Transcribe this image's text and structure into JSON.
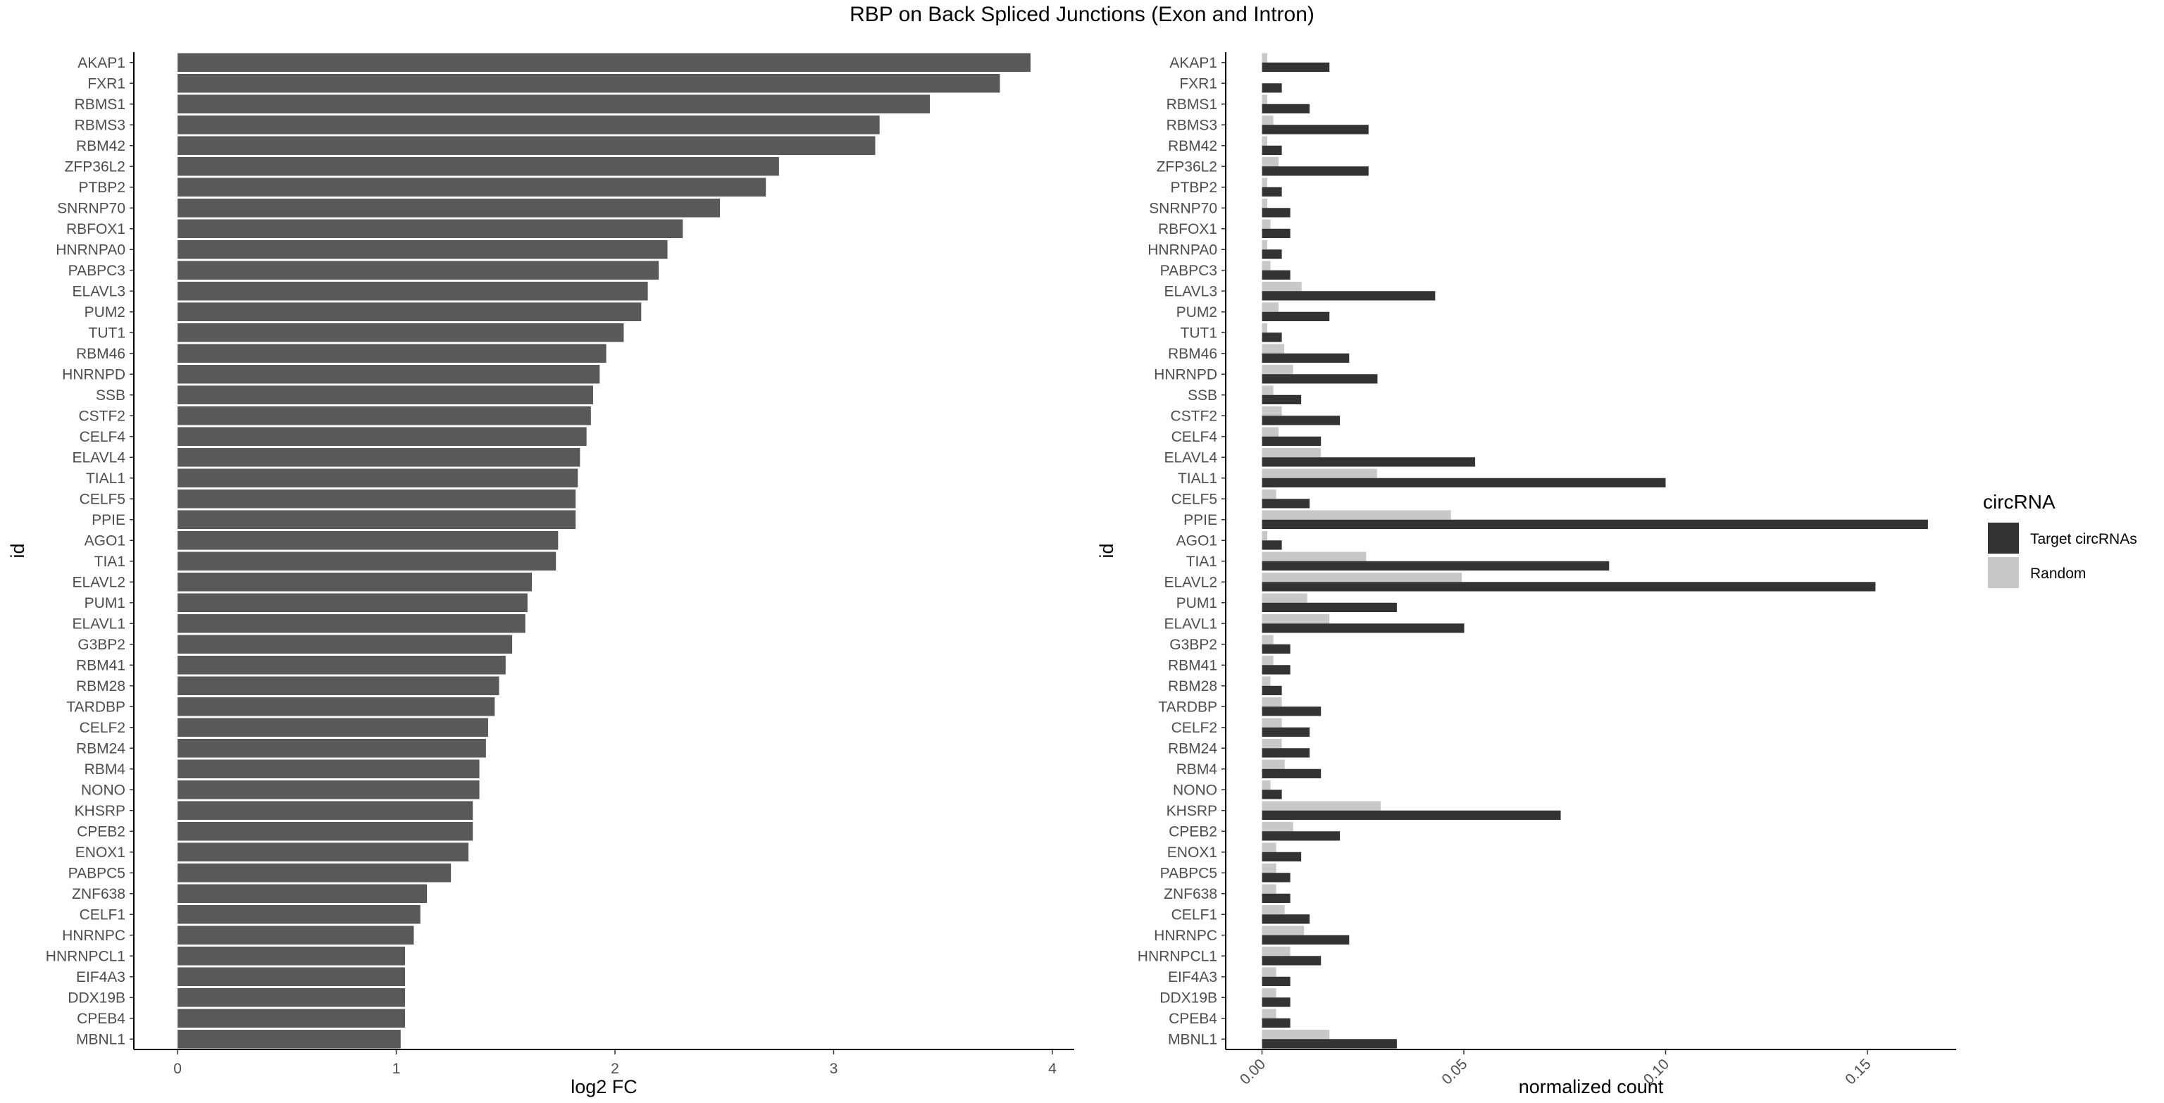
{
  "title": "RBP on Back Spliced Junctions (Exon and Intron)",
  "chart_data": [
    {
      "type": "bar",
      "orientation": "horizontal",
      "xlabel": "log2 FC",
      "ylabel": "id",
      "xlim": [
        -0.2,
        4.1
      ],
      "xticks": [
        0,
        1,
        2,
        3,
        4
      ],
      "grid": false,
      "bar_color": "#595959",
      "categories": [
        "AKAP1",
        "FXR1",
        "RBMS1",
        "RBMS3",
        "RBM42",
        "ZFP36L2",
        "PTBP2",
        "SNRNP70",
        "RBFOX1",
        "HNRNPA0",
        "PABPC3",
        "ELAVL3",
        "PUM2",
        "TUT1",
        "RBM46",
        "HNRNPD",
        "SSB",
        "CSTF2",
        "CELF4",
        "ELAVL4",
        "TIAL1",
        "CELF5",
        "PPIE",
        "AGO1",
        "TIA1",
        "ELAVL2",
        "PUM1",
        "ELAVL1",
        "G3BP2",
        "RBM41",
        "RBM28",
        "TARDBP",
        "CELF2",
        "RBM24",
        "RBM4",
        "NONO",
        "KHSRP",
        "CPEB2",
        "ENOX1",
        "PABPC5",
        "ZNF638",
        "CELF1",
        "HNRNPC",
        "HNRNPCL1",
        "EIF4A3",
        "DDX19B",
        "CPEB4",
        "MBNL1"
      ],
      "values": [
        3.9,
        3.76,
        3.44,
        3.21,
        3.19,
        2.75,
        2.69,
        2.48,
        2.31,
        2.24,
        2.2,
        2.15,
        2.12,
        2.04,
        1.96,
        1.93,
        1.9,
        1.89,
        1.87,
        1.84,
        1.83,
        1.82,
        1.82,
        1.74,
        1.73,
        1.62,
        1.6,
        1.59,
        1.53,
        1.5,
        1.47,
        1.45,
        1.42,
        1.41,
        1.38,
        1.38,
        1.35,
        1.35,
        1.33,
        1.25,
        1.14,
        1.11,
        1.08,
        1.04,
        1.04,
        1.04,
        1.04,
        1.02
      ]
    },
    {
      "type": "bar",
      "orientation": "horizontal",
      "xlabel": "normalized count",
      "ylabel": "id",
      "xlim": [
        -0.009,
        0.172
      ],
      "xticks": [
        "0.00",
        "0.05",
        "0.10",
        "0.15"
      ],
      "xtick_values": [
        0,
        0.05,
        0.1,
        0.15
      ],
      "grid": false,
      "legend": {
        "title": "circRNA",
        "placement": "right"
      },
      "categories": [
        "AKAP1",
        "FXR1",
        "RBMS1",
        "RBMS3",
        "RBM42",
        "ZFP36L2",
        "PTBP2",
        "SNRNP70",
        "RBFOX1",
        "HNRNPA0",
        "PABPC3",
        "ELAVL3",
        "PUM2",
        "TUT1",
        "RBM46",
        "HNRNPD",
        "SSB",
        "CSTF2",
        "CELF4",
        "ELAVL4",
        "TIAL1",
        "CELF5",
        "PPIE",
        "AGO1",
        "TIA1",
        "ELAVL2",
        "PUM1",
        "ELAVL1",
        "G3BP2",
        "RBM41",
        "RBM28",
        "TARDBP",
        "CELF2",
        "RBM24",
        "RBM4",
        "NONO",
        "KHSRP",
        "CPEB2",
        "ENOX1",
        "PABPC5",
        "ZNF638",
        "CELF1",
        "HNRNPC",
        "HNRNPCL1",
        "EIF4A3",
        "DDX19B",
        "CPEB4",
        "MBNL1"
      ],
      "series": [
        {
          "name": "Random",
          "color": "#c8c8c8",
          "values": [
            0.0013,
            0,
            0.0013,
            0.0028,
            0.0013,
            0.0041,
            0.0013,
            0.0013,
            0.0021,
            0.0013,
            0.0021,
            0.0098,
            0.0041,
            0.0013,
            0.0055,
            0.0077,
            0.0028,
            0.0049,
            0.0041,
            0.0146,
            0.0285,
            0.0035,
            0.0468,
            0.0013,
            0.0258,
            0.0495,
            0.0112,
            0.0167,
            0.0028,
            0.0028,
            0.0021,
            0.0049,
            0.0049,
            0.0049,
            0.0056,
            0.0021,
            0.0294,
            0.0077,
            0.0035,
            0.0035,
            0.0035,
            0.0056,
            0.0104,
            0.007,
            0.0035,
            0.0035,
            0.0035,
            0.0167
          ]
        },
        {
          "name": "Target circRNAs",
          "color": "#333333",
          "values": [
            0.0167,
            0.0049,
            0.0118,
            0.0264,
            0.0049,
            0.0264,
            0.0049,
            0.007,
            0.007,
            0.0049,
            0.007,
            0.0429,
            0.0167,
            0.0049,
            0.0216,
            0.0286,
            0.0097,
            0.0193,
            0.0146,
            0.0528,
            0.1,
            0.0118,
            0.165,
            0.0049,
            0.086,
            0.152,
            0.0334,
            0.0501,
            0.007,
            0.007,
            0.0049,
            0.0146,
            0.0118,
            0.0118,
            0.0146,
            0.0049,
            0.074,
            0.0193,
            0.0097,
            0.007,
            0.007,
            0.0118,
            0.0216,
            0.0146,
            0.007,
            0.007,
            0.007,
            0.0334
          ]
        }
      ]
    }
  ]
}
